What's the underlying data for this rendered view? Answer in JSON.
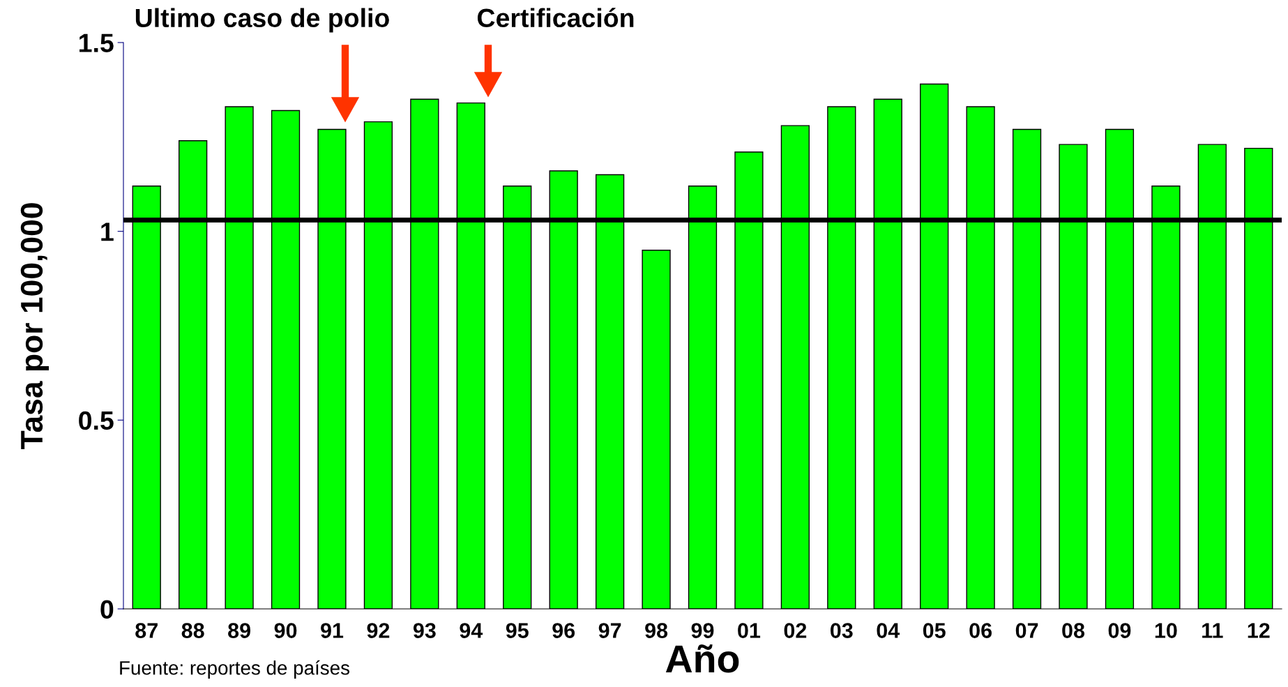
{
  "chart_data": {
    "type": "bar",
    "xlabel": "Año",
    "ylabel": "Tasa por 100,000",
    "categories": [
      "87",
      "88",
      "89",
      "90",
      "91",
      "92",
      "93",
      "94",
      "95",
      "96",
      "97",
      "98",
      "99",
      "01",
      "02",
      "03",
      "04",
      "05",
      "06",
      "07",
      "08",
      "09",
      "10",
      "11",
      "12"
    ],
    "values": [
      1.12,
      1.24,
      1.33,
      1.32,
      1.27,
      1.29,
      1.35,
      1.34,
      1.12,
      1.16,
      1.15,
      0.95,
      1.12,
      1.21,
      1.28,
      1.33,
      1.35,
      1.39,
      1.33,
      1.27,
      1.23,
      1.27,
      1.12,
      1.23,
      1.22
    ],
    "color": "#00ff00",
    "ylim": [
      0,
      1.5
    ],
    "yticks": [
      0,
      0.5,
      1,
      1.5
    ],
    "ref_lines": [
      {
        "axis": "y",
        "value": 1.03,
        "color": "#000000"
      }
    ],
    "annotations": [
      "Ultimo caso de polio",
      "Certificación",
      "Fuente: reportes de países"
    ],
    "grid": false,
    "legend": false
  }
}
